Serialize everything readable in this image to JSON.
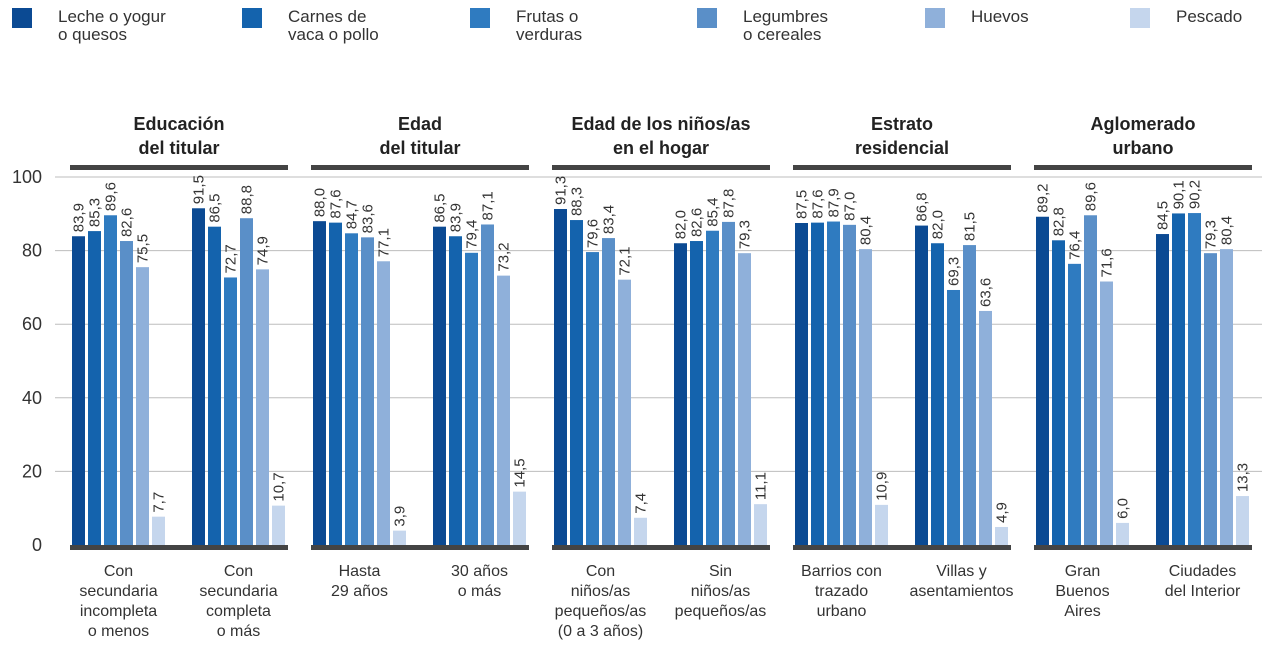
{
  "chart_data": {
    "type": "bar",
    "groups": [
      "Educación\ndel titular",
      "Edad\ndel titular",
      "Edad de los niños/as\nen el hogar",
      "Estrato\nresidencial",
      "Aglomerado\nurbano"
    ],
    "categories": [
      "Con\nsecundaria\nincompleta\no menos",
      "Con\nsecundaria\ncompleta\no más",
      "Hasta\n29 años",
      "30 años\no más",
      "Con\nniños/as\npequeños/as\n(0 a 3 años)",
      "Sin\nniños/as\npequeños/as",
      "Barrios con\ntrazado\nurbano",
      "Villas y\nasentamientos",
      "Gran\nBuenos\nAires",
      "Ciudades\ndel Interior"
    ],
    "series": [
      {
        "name": "Leche o yogur\no quesos",
        "color": "#0b4a93",
        "values": [
          83.9,
          91.5,
          88.0,
          86.5,
          91.3,
          82.0,
          87.5,
          86.8,
          89.2,
          84.5
        ],
        "value_labels": [
          "83,9",
          "91,5",
          "88,0",
          "86,5",
          "91,3",
          "82,0",
          "87,5",
          "86,8",
          "89,2",
          "84,5"
        ]
      },
      {
        "name": "Carnes de\nvaca o pollo",
        "color": "#1463ad",
        "values": [
          85.3,
          86.5,
          87.6,
          83.9,
          88.3,
          82.6,
          87.6,
          82.0,
          82.8,
          90.1
        ],
        "value_labels": [
          "85,3",
          "86,5",
          "87,6",
          "83,9",
          "88,3",
          "82,6",
          "87,6",
          "82,0",
          "82,8",
          "90,1"
        ]
      },
      {
        "name": "Frutas o\nverduras",
        "color": "#2f7bc0",
        "values": [
          89.6,
          72.7,
          84.7,
          79.4,
          79.6,
          85.4,
          87.9,
          69.3,
          76.4,
          90.2
        ],
        "value_labels": [
          "89,6",
          "72,7",
          "84,7",
          "79,4",
          "79,6",
          "85,4",
          "87,9",
          "69,3",
          "76,4",
          "90,2"
        ]
      },
      {
        "name": "Legumbres\no cereales",
        "color": "#5a8fc8",
        "values": [
          82.6,
          88.8,
          83.6,
          87.1,
          83.4,
          87.8,
          87.0,
          81.5,
          89.6,
          79.3
        ],
        "value_labels": [
          "82,6",
          "88,8",
          "83,6",
          "87,1",
          "83,4",
          "87,8",
          "87,0",
          "81,5",
          "89,6",
          "79,3"
        ]
      },
      {
        "name": "Huevos",
        "color": "#8fb0da",
        "values": [
          75.5,
          74.9,
          77.1,
          73.2,
          72.1,
          79.3,
          80.4,
          63.6,
          71.6,
          80.4
        ],
        "value_labels": [
          "75,5",
          "74,9",
          "77,1",
          "73,2",
          "72,1",
          "79,3",
          "80,4",
          "63,6",
          "71,6",
          "80,4"
        ]
      },
      {
        "name": "Pescado",
        "color": "#c5d6ed",
        "values": [
          7.7,
          10.7,
          3.9,
          14.5,
          7.4,
          11.1,
          10.9,
          4.9,
          6.0,
          13.3
        ],
        "value_labels": [
          "7,7",
          "10,7",
          "3,9",
          "14,5",
          "7,4",
          "11,1",
          "10,9",
          "4,9",
          "6,0",
          "13,3"
        ]
      }
    ],
    "ylim": [
      0,
      100
    ],
    "yticks": [
      0,
      20,
      40,
      60,
      80,
      100
    ],
    "grid": true
  }
}
